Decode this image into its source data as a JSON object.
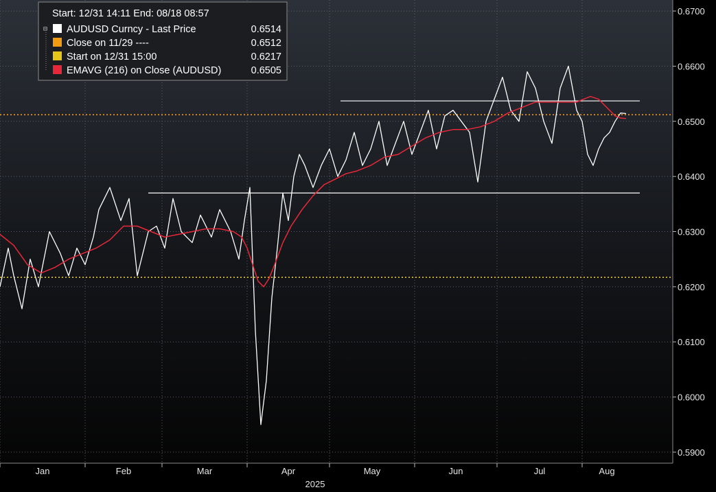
{
  "legend": {
    "header": "Start: 12/31 14:11 End: 08/18 08:57",
    "items": [
      {
        "label": "AUDUSD Curncy - Last Price",
        "value": "0.6514",
        "color": "#ffffff"
      },
      {
        "label": "Close on 11/29 ----",
        "value": "0.6512",
        "color": "#f39c12"
      },
      {
        "label": "Start on 12/31 15:00",
        "value": "0.6217",
        "color": "#e6c619"
      },
      {
        "label": "EMAVG (216)  on Close (AUDUSD)",
        "value": "0.6505",
        "color": "#e8283a"
      }
    ]
  },
  "chart_data": {
    "type": "line",
    "title": "",
    "xlabel": "2025",
    "ylabel": "",
    "ylim": [
      0.588,
      0.672
    ],
    "grid": true,
    "legend_position": "top-left",
    "x_tick_labels": [
      "Jan",
      "Feb",
      "Mar",
      "Apr",
      "May",
      "Jun",
      "Jul",
      "Aug"
    ],
    "y_tick_labels": [
      "0.5900",
      "0.6000",
      "0.6100",
      "0.6200",
      "0.6300",
      "0.6400",
      "0.6500",
      "0.6600",
      "0.6700"
    ],
    "y_ticks": [
      0.59,
      0.6,
      0.61,
      0.62,
      0.63,
      0.64,
      0.65,
      0.66,
      0.67
    ],
    "x_range_days": [
      0,
      230
    ],
    "month_start_days": [
      0,
      31,
      59,
      90,
      120,
      151,
      181,
      212
    ],
    "series": [
      {
        "name": "AUDUSD Curncy - Last Price",
        "color": "#ffffff",
        "x": [
          0,
          3,
          5,
          8,
          11,
          14,
          18,
          22,
          25,
          28,
          31,
          34,
          36,
          40,
          44,
          47,
          50,
          54,
          57,
          60,
          63,
          66,
          70,
          73,
          77,
          80,
          84,
          87,
          89,
          91,
          93,
          95,
          97,
          99,
          101,
          103,
          105,
          107,
          109,
          111,
          114,
          117,
          120,
          123,
          126,
          129,
          132,
          135,
          138,
          141,
          144,
          147,
          150,
          153,
          156,
          159,
          162,
          165,
          168,
          171,
          174,
          177,
          180,
          183,
          186,
          189,
          192,
          195,
          198,
          201,
          204,
          207,
          210,
          212,
          214,
          216,
          218,
          220,
          222,
          224,
          226,
          228
        ],
        "y": [
          0.62,
          0.627,
          0.622,
          0.616,
          0.625,
          0.62,
          0.63,
          0.626,
          0.622,
          0.627,
          0.624,
          0.629,
          0.634,
          0.638,
          0.632,
          0.636,
          0.622,
          0.63,
          0.631,
          0.627,
          0.636,
          0.63,
          0.628,
          0.633,
          0.629,
          0.634,
          0.63,
          0.625,
          0.632,
          0.638,
          0.612,
          0.595,
          0.603,
          0.618,
          0.627,
          0.637,
          0.632,
          0.64,
          0.644,
          0.642,
          0.638,
          0.642,
          0.645,
          0.64,
          0.643,
          0.648,
          0.642,
          0.645,
          0.65,
          0.642,
          0.646,
          0.65,
          0.644,
          0.648,
          0.652,
          0.645,
          0.651,
          0.652,
          0.65,
          0.648,
          0.639,
          0.65,
          0.654,
          0.658,
          0.652,
          0.65,
          0.659,
          0.656,
          0.65,
          0.646,
          0.656,
          0.66,
          0.652,
          0.65,
          0.644,
          0.642,
          0.645,
          0.647,
          0.648,
          0.65,
          0.6515,
          0.6514
        ]
      },
      {
        "name": "EMAVG (216)  on Close (AUDUSD)",
        "color": "#e8283a",
        "x": [
          0,
          5,
          10,
          15,
          20,
          25,
          30,
          35,
          40,
          45,
          50,
          55,
          60,
          65,
          70,
          75,
          80,
          85,
          88,
          90,
          92,
          94,
          96,
          98,
          100,
          103,
          106,
          110,
          114,
          118,
          122,
          126,
          130,
          135,
          140,
          145,
          150,
          155,
          160,
          165,
          170,
          175,
          180,
          185,
          190,
          195,
          200,
          205,
          210,
          215,
          218,
          220,
          222,
          224,
          226,
          228
        ],
        "y": [
          0.6295,
          0.6275,
          0.624,
          0.6225,
          0.6235,
          0.625,
          0.626,
          0.627,
          0.6285,
          0.631,
          0.631,
          0.63,
          0.629,
          0.6295,
          0.63,
          0.6305,
          0.6305,
          0.63,
          0.629,
          0.627,
          0.624,
          0.621,
          0.62,
          0.6215,
          0.624,
          0.628,
          0.631,
          0.634,
          0.6365,
          0.6385,
          0.6395,
          0.6405,
          0.641,
          0.642,
          0.6435,
          0.644,
          0.6455,
          0.647,
          0.648,
          0.6485,
          0.6485,
          0.649,
          0.65,
          0.6515,
          0.6525,
          0.6535,
          0.6535,
          0.6535,
          0.6535,
          0.6545,
          0.654,
          0.653,
          0.652,
          0.651,
          0.6506,
          0.6505
        ]
      },
      {
        "name": "Close on 11/29 ----",
        "color": "#f39c12",
        "type": "hline",
        "y": 0.6512
      },
      {
        "name": "Start on 12/31 15:00",
        "color": "#e6c619",
        "type": "hline",
        "y": 0.6217
      }
    ],
    "annotations": [
      {
        "type": "segment",
        "x": [
          54,
          233
        ],
        "y": [
          0.637,
          0.637
        ],
        "color": "#ffffff"
      },
      {
        "type": "segment",
        "x": [
          124,
          233
        ],
        "y": [
          0.6537,
          0.6537
        ],
        "color": "#ffffff"
      }
    ]
  }
}
